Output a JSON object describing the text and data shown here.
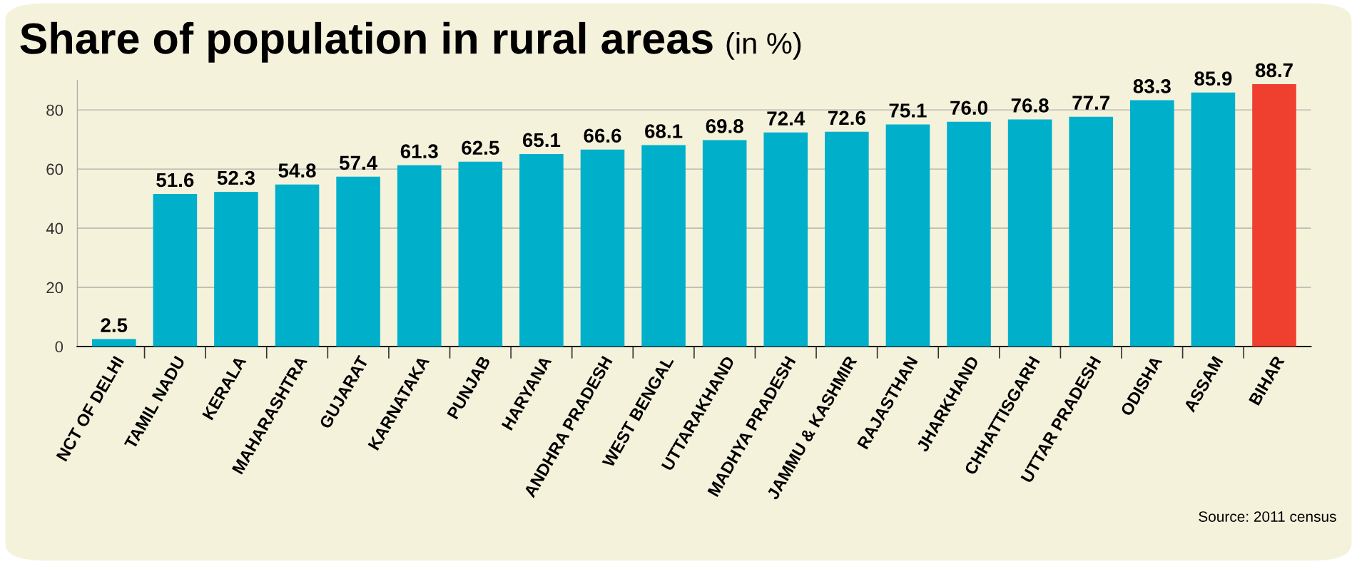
{
  "chart_data": {
    "type": "bar",
    "title": "Share of population in rural areas",
    "subtitle": "(in %)",
    "categories": [
      "NCT OF DELHI",
      "TAMIL NADU",
      "KERALA",
      "MAHARASHTRA",
      "GUJARAT",
      "KARNATAKA",
      "PUNJAB",
      "HARYANA",
      "ANDHRA PRADESH",
      "WEST BENGAL",
      "UTTARAKHAND",
      "MADHYA PRADESH",
      "JAMMU & KASHMIR",
      "RAJASTHAN",
      "JHARKHAND",
      "CHHATTISGARH",
      "UTTAR PRADESH",
      "ODISHA",
      "ASSAM",
      "BIHAR"
    ],
    "values": [
      2.5,
      51.6,
      52.3,
      54.8,
      57.4,
      61.3,
      62.5,
      65.1,
      66.6,
      68.1,
      69.8,
      72.4,
      72.6,
      75.1,
      76.0,
      76.8,
      77.7,
      83.3,
      85.9,
      88.7
    ],
    "value_labels": [
      "2.5",
      "51.6",
      "52.3",
      "54.8",
      "57.4",
      "61.3",
      "62.5",
      "65.1",
      "66.6",
      "68.1",
      "69.8",
      "72.4",
      "72.6",
      "75.1",
      "76.0",
      "76.8",
      "77.7",
      "83.3",
      "85.9",
      "88.7"
    ],
    "colors": [
      "#00b0cb",
      "#00b0cb",
      "#00b0cb",
      "#00b0cb",
      "#00b0cb",
      "#00b0cb",
      "#00b0cb",
      "#00b0cb",
      "#00b0cb",
      "#00b0cb",
      "#00b0cb",
      "#00b0cb",
      "#00b0cb",
      "#00b0cb",
      "#00b0cb",
      "#00b0cb",
      "#00b0cb",
      "#00b0cb",
      "#00b0cb",
      "#ef402f"
    ],
    "ylim": [
      0,
      90
    ],
    "yticks": [
      0,
      20,
      40,
      60,
      80
    ],
    "grid": "y",
    "annotations": [
      "Source: 2011 census"
    ]
  }
}
